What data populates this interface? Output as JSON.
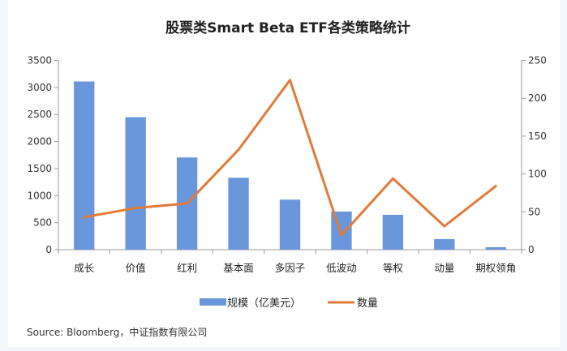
{
  "chart_data": {
    "type": "bar+line",
    "title": "股票类Smart Beta ETF各类策略统计",
    "categories": [
      "成长",
      "价值",
      "红利",
      "基本面",
      "多因子",
      "低波动",
      "等权",
      "动量",
      "期权领角"
    ],
    "series": [
      {
        "name": "规模（亿美元）",
        "type": "bar",
        "axis": "left",
        "color": "#6a97dc",
        "values": [
          3110,
          2450,
          1705,
          1330,
          925,
          705,
          645,
          195,
          45
        ]
      },
      {
        "name": "数量",
        "type": "line",
        "axis": "right",
        "color": "#e07b39",
        "values": [
          43,
          55,
          61,
          132,
          224,
          19,
          94,
          31,
          84
        ]
      }
    ],
    "y_left": {
      "range": [
        0,
        3500
      ],
      "ticks": [
        "0",
        "500",
        "1000",
        "1500",
        "2000",
        "2500",
        "3000",
        "3500"
      ]
    },
    "y_right": {
      "range": [
        0,
        250
      ],
      "ticks": [
        "0",
        "50",
        "100",
        "150",
        "200",
        "250"
      ]
    },
    "grid": false,
    "legend_placement": "bottom",
    "source": "Source: Bloomberg，中证指数有限公司"
  }
}
